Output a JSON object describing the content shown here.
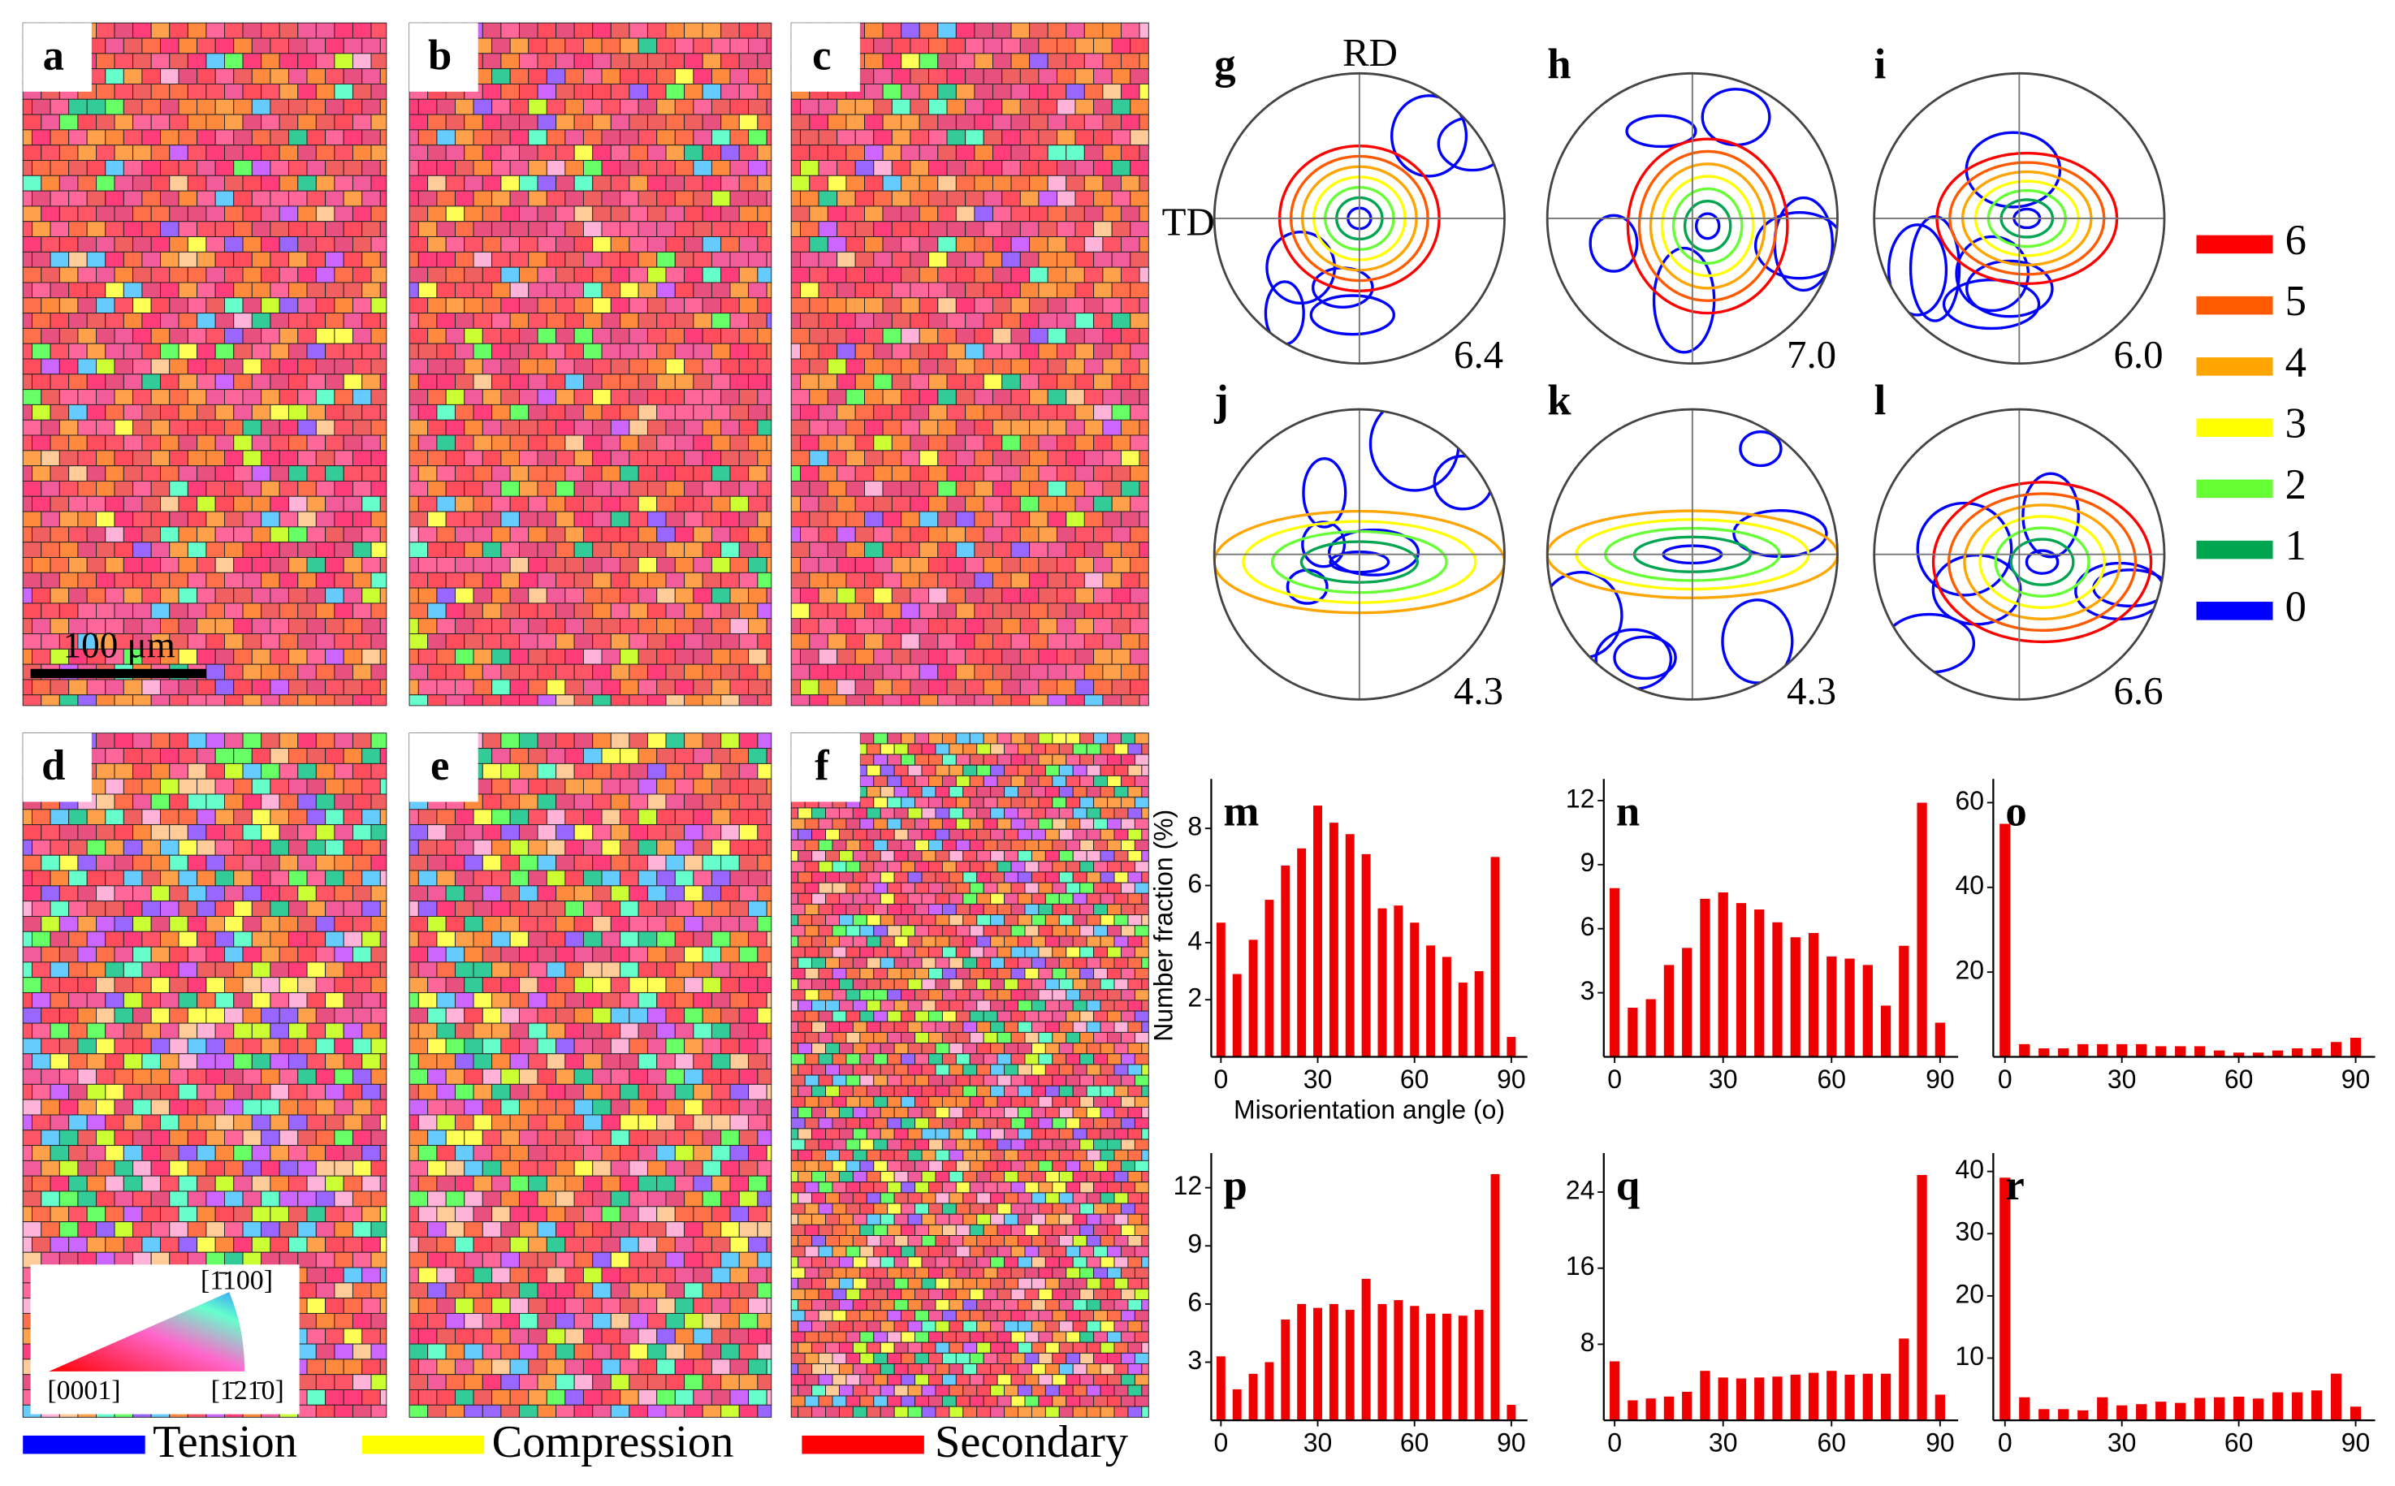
{
  "maps": {
    "labels": [
      "a",
      "b",
      "c",
      "d",
      "e",
      "f"
    ],
    "scale_bar": "100 μm",
    "ipf": [
      "[1̄100]",
      "[0001]",
      "[1̄21̄0]"
    ]
  },
  "boundary_legend": [
    {
      "name": "Tension",
      "color": "#0000ff"
    },
    {
      "name": "Compression",
      "color": "#ffff00"
    },
    {
      "name": "Secondary",
      "color": "#ff0000"
    }
  ],
  "pole_figures": {
    "axes": [
      "RD",
      "TD"
    ],
    "labels": [
      "g",
      "h",
      "i",
      "j",
      "k",
      "l"
    ],
    "maxima": [
      "6.4",
      "7.0",
      "6.0",
      "4.3",
      "4.3",
      "6.6"
    ]
  },
  "contour_legend": {
    "levels": [
      6,
      5,
      4,
      3,
      2,
      1,
      0
    ],
    "colors": [
      "#ff0000",
      "#ff5a00",
      "#ffa500",
      "#ffff00",
      "#66ff33",
      "#00a550",
      "#0000ff"
    ]
  },
  "chart_data": [
    {
      "type": "bar",
      "title": "m",
      "ylabel": "Number fraction (%)",
      "xlabel": "Misorientation angle (o)",
      "color": "#ee0000",
      "x": [
        0,
        5,
        10,
        15,
        20,
        25,
        30,
        35,
        40,
        45,
        50,
        55,
        60,
        65,
        70,
        75,
        80,
        85,
        90
      ],
      "values": [
        4.7,
        2.9,
        4.1,
        5.5,
        6.7,
        7.3,
        8.8,
        8.2,
        7.8,
        7.1,
        5.2,
        5.3,
        4.7,
        3.9,
        3.5,
        2.6,
        3.0,
        7.0,
        0.7
      ],
      "xlim": [
        -3,
        95
      ],
      "ylim": [
        0,
        9.2
      ],
      "xticks": [
        0,
        30,
        60,
        90
      ],
      "yticks": [
        2,
        4,
        6,
        8
      ]
    },
    {
      "type": "bar",
      "title": "n",
      "color": "#ee0000",
      "x": [
        0,
        5,
        10,
        15,
        20,
        25,
        30,
        35,
        40,
        45,
        50,
        55,
        60,
        65,
        70,
        75,
        80,
        85,
        90
      ],
      "values": [
        7.9,
        2.3,
        2.7,
        4.3,
        5.1,
        7.4,
        7.7,
        7.2,
        6.9,
        6.3,
        5.6,
        5.8,
        4.7,
        4.6,
        4.3,
        2.4,
        5.2,
        11.9,
        1.6
      ],
      "xlim": [
        -3,
        95
      ],
      "ylim": [
        0,
        12.3
      ],
      "xticks": [
        0,
        30,
        60,
        90
      ],
      "yticks": [
        3,
        6,
        9,
        12
      ]
    },
    {
      "type": "bar",
      "title": "o",
      "color": "#ee0000",
      "x": [
        0,
        5,
        10,
        15,
        20,
        25,
        30,
        35,
        40,
        45,
        50,
        55,
        60,
        65,
        70,
        75,
        80,
        85,
        90
      ],
      "values": [
        55,
        3,
        2,
        2,
        3,
        3,
        3,
        3,
        2.5,
        2.5,
        2.5,
        1.5,
        1,
        1,
        1.5,
        2,
        2,
        3.5,
        4.5
      ],
      "xlim": [
        -3,
        95
      ],
      "ylim": [
        0,
        62
      ],
      "xticks": [
        0,
        30,
        60,
        90
      ],
      "yticks": [
        20,
        40,
        60
      ]
    },
    {
      "type": "bar",
      "title": "p",
      "color": "#ee0000",
      "x": [
        0,
        5,
        10,
        15,
        20,
        25,
        30,
        35,
        40,
        45,
        50,
        55,
        60,
        65,
        70,
        75,
        80,
        85,
        90
      ],
      "values": [
        3.3,
        1.6,
        2.4,
        3.0,
        5.2,
        6.0,
        5.8,
        6.0,
        5.7,
        7.3,
        6.0,
        6.2,
        5.9,
        5.5,
        5.5,
        5.4,
        5.7,
        12.7,
        0.8
      ],
      "xlim": [
        -3,
        95
      ],
      "ylim": [
        0,
        13
      ],
      "xticks": [
        0,
        30,
        60,
        90
      ],
      "yticks": [
        3,
        6,
        9,
        12
      ]
    },
    {
      "type": "bar",
      "title": "q",
      "color": "#ee0000",
      "x": [
        0,
        5,
        10,
        15,
        20,
        25,
        30,
        35,
        40,
        45,
        50,
        55,
        60,
        65,
        70,
        75,
        80,
        85,
        90
      ],
      "values": [
        6.2,
        2.1,
        2.3,
        2.5,
        3.0,
        5.2,
        4.5,
        4.4,
        4.5,
        4.6,
        4.8,
        5.0,
        5.2,
        4.8,
        4.9,
        4.9,
        8.6,
        25.8,
        2.7
      ],
      "xlim": [
        -3,
        95
      ],
      "ylim": [
        0,
        26.5
      ],
      "xticks": [
        0,
        30,
        60,
        90
      ],
      "yticks": [
        8,
        16,
        24
      ]
    },
    {
      "type": "bar",
      "title": "r",
      "color": "#ee0000",
      "x": [
        0,
        5,
        10,
        15,
        20,
        25,
        30,
        35,
        40,
        45,
        50,
        55,
        60,
        65,
        70,
        75,
        80,
        85,
        90
      ],
      "values": [
        39,
        3.7,
        1.8,
        1.8,
        1.6,
        3.7,
        2.4,
        2.6,
        3.0,
        2.8,
        3.6,
        3.7,
        3.8,
        3.5,
        4.5,
        4.5,
        4.8,
        7.5,
        2.2
      ],
      "xlim": [
        -3,
        95
      ],
      "ylim": [
        0,
        40.5
      ],
      "xticks": [
        0,
        30,
        60,
        90
      ],
      "yticks": [
        10,
        20,
        30,
        40
      ]
    }
  ]
}
